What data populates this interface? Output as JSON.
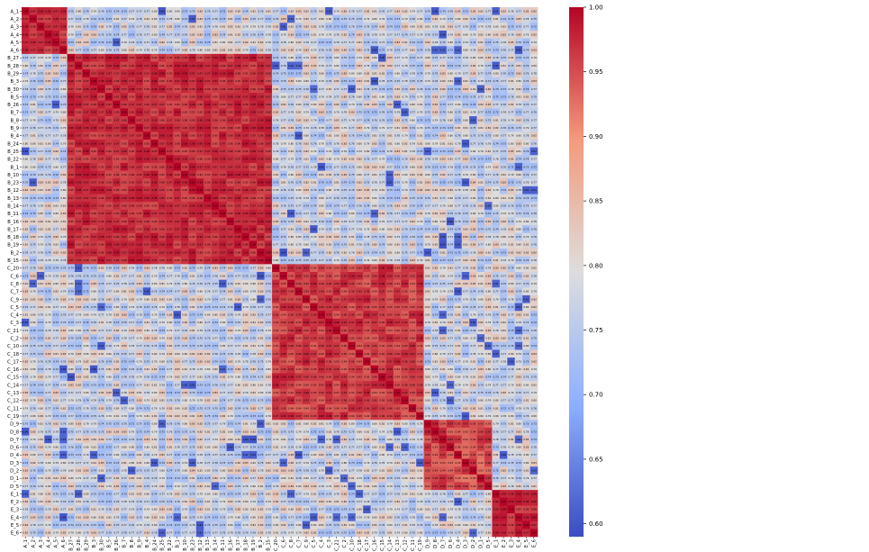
{
  "chart_data": {
    "type": "heatmap",
    "title": "",
    "xlabel": "",
    "ylabel": "",
    "labels": [
      "A_1",
      "A_2",
      "A_3",
      "A_4",
      "A_5",
      "A_6",
      "B_27",
      "B_28",
      "B_29",
      "B_3",
      "B_30",
      "B_5",
      "B_26",
      "B_7",
      "B_8",
      "B_9",
      "B_4",
      "B_24",
      "B_25",
      "B_22",
      "B_1",
      "B_10",
      "B_23",
      "B_12",
      "B_13",
      "B_14",
      "B_11",
      "B_16",
      "B_17",
      "B_18",
      "B_19",
      "B_2",
      "B_15",
      "C_20",
      "C_6",
      "C_8",
      "C_7",
      "C_9",
      "C_5",
      "C_4",
      "C_3",
      "C_21",
      "C_2",
      "C_10",
      "C_18",
      "C_17",
      "C_16",
      "C_15",
      "C_14",
      "C_13",
      "C_12",
      "C_11",
      "C_19",
      "D_9",
      "D_8",
      "D_7",
      "D_6",
      "D_4",
      "D_3",
      "D_2",
      "D_1",
      "D_5",
      "E_1",
      "E_2",
      "E_3",
      "E_4",
      "E_5",
      "E_6"
    ],
    "groups": [
      {
        "name": "A",
        "start": 0,
        "end": 6,
        "within": 0.97,
        "spread": 0.02
      },
      {
        "name": "B",
        "start": 6,
        "end": 33,
        "within": 0.97,
        "spread": 0.02
      },
      {
        "name": "C",
        "start": 33,
        "end": 53,
        "within": 0.96,
        "spread": 0.025
      },
      {
        "name": "D",
        "start": 53,
        "end": 62,
        "within": 0.95,
        "spread": 0.03
      },
      {
        "name": "E",
        "start": 62,
        "end": 68,
        "within": 0.97,
        "spread": 0.02
      }
    ],
    "between_groups": 0.78,
    "between_spread": 0.06,
    "diagonal": 1.0,
    "value_format": "2 decimals",
    "vmin": 0.59,
    "vmax": 1.0,
    "colormap": "coolwarm",
    "colormap_stops": [
      "#3b4cc0",
      "#8db0fe",
      "#dddddd",
      "#f49a7b",
      "#b40426"
    ],
    "colorbar": {
      "position": "right",
      "ticks": [
        "0.60",
        "0.65",
        "0.70",
        "0.75",
        "0.80",
        "0.85",
        "0.90",
        "0.95",
        "1.00"
      ]
    },
    "annotations": "each cell shows its correlation value",
    "grid": false
  }
}
